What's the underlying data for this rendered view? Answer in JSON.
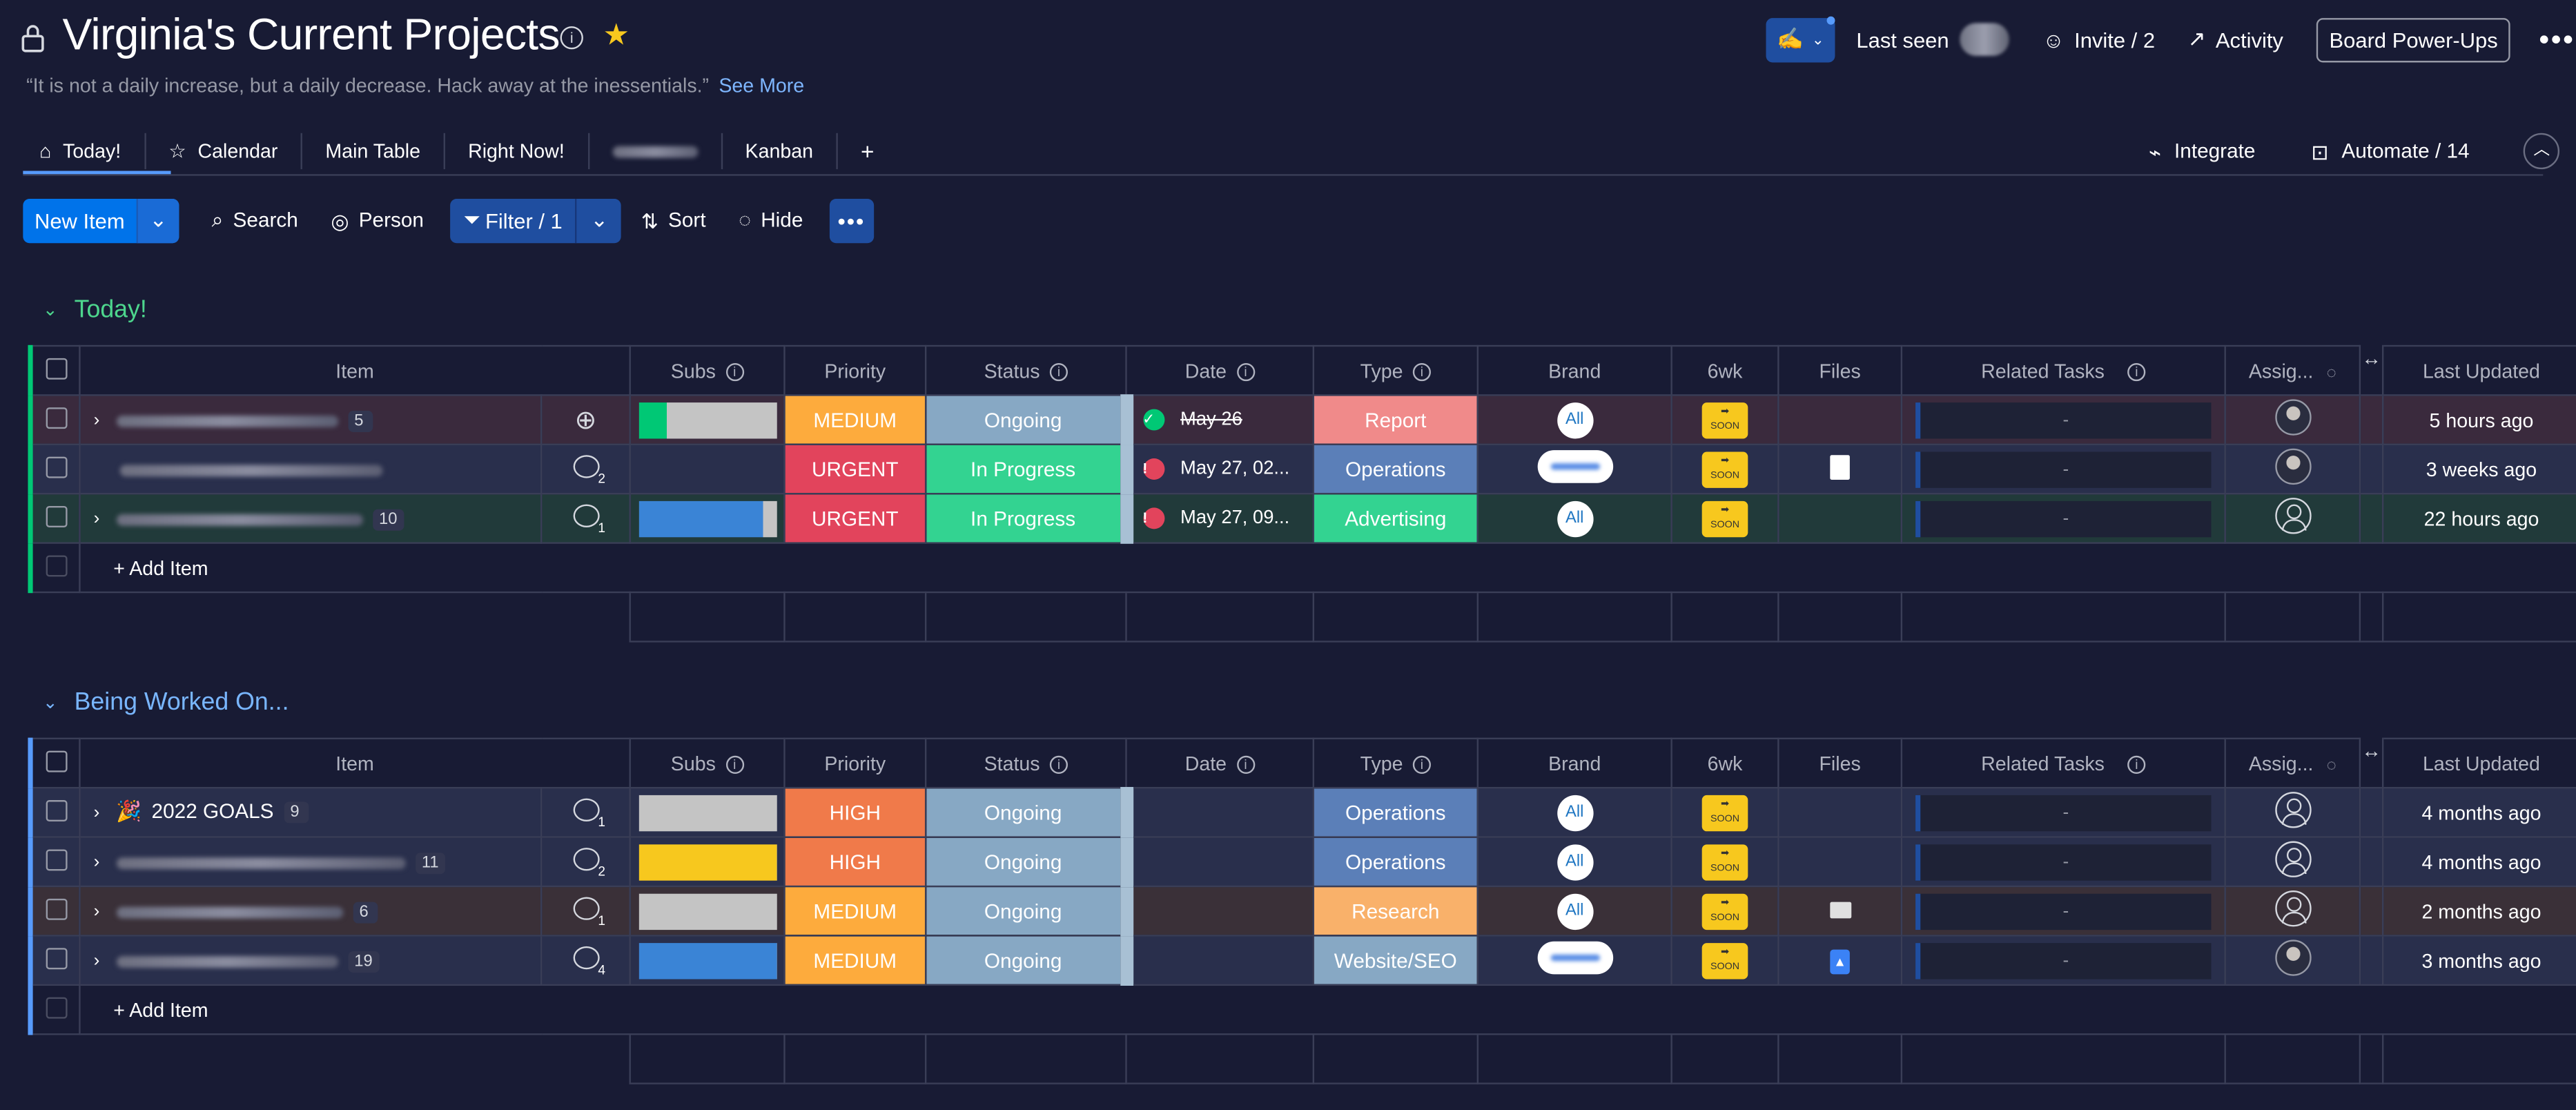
{
  "board": {
    "title": "Virginia's Current Projects",
    "quote": "“It is not a daily increase, but a daily decrease. Hack away at the inessentials.”",
    "see_more": "See More"
  },
  "header": {
    "last_seen": "Last seen",
    "invite": "Invite / 2",
    "activity": "Activity",
    "power_ups": "Board Power-Ups"
  },
  "tabs": [
    "Today!",
    "Calendar",
    "Main Table",
    "Right Now!",
    "Kanban"
  ],
  "tabs_right": {
    "integrate": "Integrate",
    "automate": "Automate / 14"
  },
  "toolbar": {
    "new_item": "New Item",
    "search": "Search",
    "person": "Person",
    "filter": "Filter / 1",
    "sort": "Sort",
    "hide": "Hide"
  },
  "columns": [
    "Item",
    "Subs",
    "Priority",
    "Status",
    "Date",
    "Type",
    "Brand",
    "6wk",
    "Files",
    "Related Tasks",
    "Assig...",
    "Last Updated"
  ],
  "groups": [
    {
      "title": "Today!",
      "color": "#00c875",
      "title_color": "#4dd68d",
      "rows": [
        {
          "name": "",
          "count": "5",
          "updates": "",
          "subs_color": "#00c875",
          "subs_pct": 0.2,
          "priority": "MEDIUM",
          "priority_color": "#fdab3d",
          "status": "Ongoing",
          "status_color": "#87a8c4",
          "date": "May 26",
          "date_state": "done",
          "type": "Report",
          "type_color": "#f08a8a",
          "brand": "All",
          "related": "-",
          "assignee": "photo",
          "updated": "5 hours ago",
          "row_bg": "#3a2a3d"
        },
        {
          "name": "",
          "count": "",
          "updates": "2",
          "subs_color": "",
          "subs_pct": 0,
          "priority": "URGENT",
          "priority_color": "#e2445c",
          "status": "In Progress",
          "status_color": "#33d391",
          "date": "May 27, 02...",
          "date_state": "overdue",
          "type": "Operations",
          "type_color": "#5b7fb8",
          "brand": "wide",
          "related": "-",
          "assignee": "photo",
          "updated": "3 weeks ago",
          "row_bg": "#292f4c"
        },
        {
          "name": "",
          "count": "10",
          "updates": "1",
          "subs_color": "#3a84d6",
          "subs_pct": 0.9,
          "priority": "URGENT",
          "priority_color": "#e2445c",
          "status": "In Progress",
          "status_color": "#33d391",
          "date": "May 27, 09...",
          "date_state": "overdue",
          "type": "Advertising",
          "type_color": "#33d391",
          "brand": "All",
          "related": "-",
          "assignee": "empty",
          "updated": "22 hours ago",
          "row_bg": "#213a3a"
        }
      ]
    },
    {
      "title": "Being Worked On...",
      "color": "#579bfc",
      "title_color": "#79b6ff",
      "rows": [
        {
          "name": "2022 GOALS",
          "emoji": "🎉",
          "count": "9",
          "updates": "1",
          "subs_color": "#c4c4c4",
          "subs_pct": 1,
          "priority": "HIGH",
          "priority_color": "#f07a4a",
          "status": "Ongoing",
          "status_color": "#87a8c4",
          "date": "",
          "date_state": "",
          "type": "Operations",
          "type_color": "#5b7fb8",
          "brand": "All",
          "related": "-",
          "assignee": "empty",
          "updated": "4 months ago",
          "row_bg": "#292f4c"
        },
        {
          "name": "",
          "count": "11",
          "updates": "2",
          "subs_color": "#f7c81e",
          "subs_pct": 1,
          "priority": "HIGH",
          "priority_color": "#f07a4a",
          "status": "Ongoing",
          "status_color": "#87a8c4",
          "date": "",
          "date_state": "",
          "type": "Operations",
          "type_color": "#5b7fb8",
          "brand": "All",
          "related": "-",
          "assignee": "empty",
          "updated": "4 months ago",
          "row_bg": "#292f4c"
        },
        {
          "name": "",
          "count": "6",
          "updates": "1",
          "subs_color": "#c4c4c4",
          "subs_pct": 1,
          "priority": "MEDIUM",
          "priority_color": "#fdab3d",
          "status": "Ongoing",
          "status_color": "#87a8c4",
          "date": "",
          "date_state": "",
          "type": "Research",
          "type_color": "#f9b16a",
          "brand": "All",
          "related": "-",
          "assignee": "empty",
          "updated": "2 months ago",
          "row_bg": "#3a3038",
          "file": "img"
        },
        {
          "name": "",
          "count": "19",
          "updates": "4",
          "subs_color": "#3a84d6",
          "subs_pct": 1,
          "priority": "MEDIUM",
          "priority_color": "#fdab3d",
          "status": "Ongoing",
          "status_color": "#87a8c4",
          "date": "",
          "date_state": "",
          "type": "Website/SEO",
          "type_color": "#87a8c4",
          "brand": "wide",
          "related": "-",
          "assignee": "photo",
          "updated": "3 months ago",
          "row_bg": "#292f4c",
          "file": "gdoc"
        }
      ]
    }
  ],
  "add_item": "+ Add Item"
}
